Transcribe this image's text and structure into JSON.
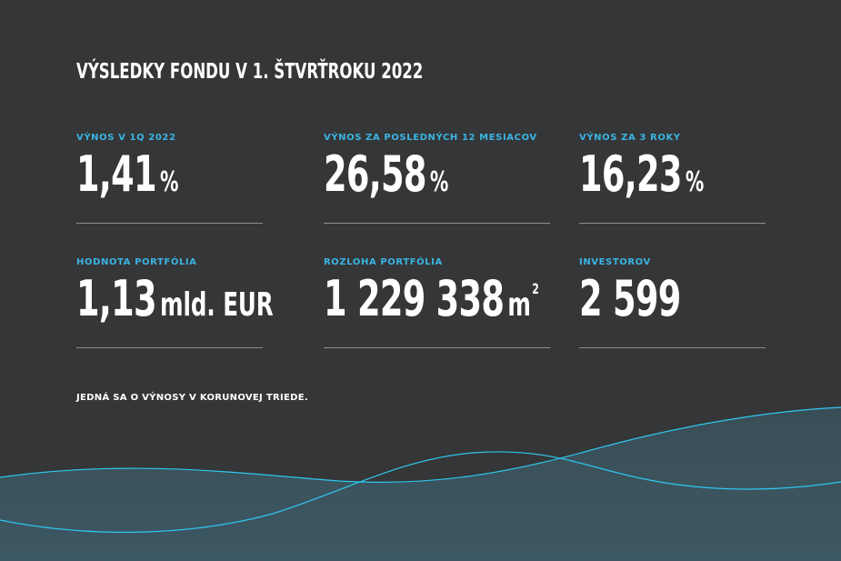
{
  "title": "VÝSLEDKY FONDU V 1. ŠTVRŤROKU 2022",
  "stats": [
    {
      "label": "VÝNOS V 1Q 2022",
      "value": "1,41",
      "unit": "%"
    },
    {
      "label": "VÝNOS ZA POSLEDNÝCH 12 MESIACOV",
      "value": "26,58",
      "unit": "%"
    },
    {
      "label": "VÝNOS ZA 3 ROKY",
      "value": "16,23",
      "unit": "%"
    },
    {
      "label": "HODNOTA PORTFÓLIA",
      "value": "1,13",
      "unit": "mld. EUR"
    },
    {
      "label": "ROZLOHA PORTFÓLIA",
      "value": "1 229 338",
      "unit": "m",
      "unit_sup": "2"
    },
    {
      "label": "INVESTOROV",
      "value": "2 599",
      "unit": ""
    }
  ],
  "note": "JEDNÁ SA O VÝNOSY V KORUNOVEJ TRIEDE.",
  "colors": {
    "background": "#353637",
    "accent": "#3ab4e4",
    "rule": "#8c8d8e",
    "wave_line": "#2ec8f0"
  }
}
